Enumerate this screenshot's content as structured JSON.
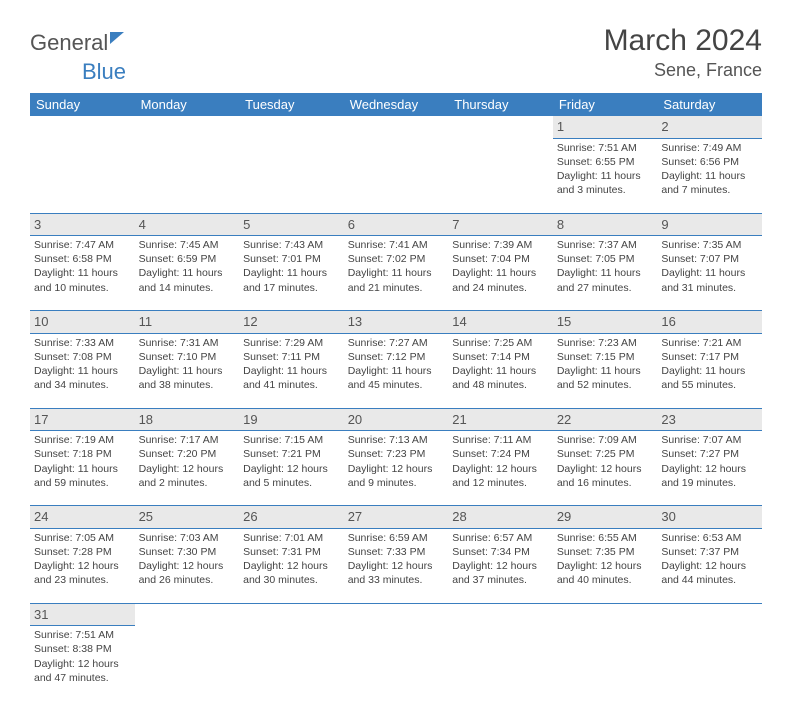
{
  "logo": {
    "part1": "General",
    "part2": "Blue"
  },
  "title": "March 2024",
  "location": "Sene, France",
  "colors": {
    "accent": "#3a7ebf",
    "daynum_bg": "#e9e9e9",
    "text": "#444444"
  },
  "weekdays": [
    "Sunday",
    "Monday",
    "Tuesday",
    "Wednesday",
    "Thursday",
    "Friday",
    "Saturday"
  ],
  "weeks": [
    [
      null,
      null,
      null,
      null,
      null,
      {
        "d": "1",
        "sr": "7:51 AM",
        "ss": "6:55 PM",
        "dl": "11 hours and 3 minutes."
      },
      {
        "d": "2",
        "sr": "7:49 AM",
        "ss": "6:56 PM",
        "dl": "11 hours and 7 minutes."
      }
    ],
    [
      {
        "d": "3",
        "sr": "7:47 AM",
        "ss": "6:58 PM",
        "dl": "11 hours and 10 minutes."
      },
      {
        "d": "4",
        "sr": "7:45 AM",
        "ss": "6:59 PM",
        "dl": "11 hours and 14 minutes."
      },
      {
        "d": "5",
        "sr": "7:43 AM",
        "ss": "7:01 PM",
        "dl": "11 hours and 17 minutes."
      },
      {
        "d": "6",
        "sr": "7:41 AM",
        "ss": "7:02 PM",
        "dl": "11 hours and 21 minutes."
      },
      {
        "d": "7",
        "sr": "7:39 AM",
        "ss": "7:04 PM",
        "dl": "11 hours and 24 minutes."
      },
      {
        "d": "8",
        "sr": "7:37 AM",
        "ss": "7:05 PM",
        "dl": "11 hours and 27 minutes."
      },
      {
        "d": "9",
        "sr": "7:35 AM",
        "ss": "7:07 PM",
        "dl": "11 hours and 31 minutes."
      }
    ],
    [
      {
        "d": "10",
        "sr": "7:33 AM",
        "ss": "7:08 PM",
        "dl": "11 hours and 34 minutes."
      },
      {
        "d": "11",
        "sr": "7:31 AM",
        "ss": "7:10 PM",
        "dl": "11 hours and 38 minutes."
      },
      {
        "d": "12",
        "sr": "7:29 AM",
        "ss": "7:11 PM",
        "dl": "11 hours and 41 minutes."
      },
      {
        "d": "13",
        "sr": "7:27 AM",
        "ss": "7:12 PM",
        "dl": "11 hours and 45 minutes."
      },
      {
        "d": "14",
        "sr": "7:25 AM",
        "ss": "7:14 PM",
        "dl": "11 hours and 48 minutes."
      },
      {
        "d": "15",
        "sr": "7:23 AM",
        "ss": "7:15 PM",
        "dl": "11 hours and 52 minutes."
      },
      {
        "d": "16",
        "sr": "7:21 AM",
        "ss": "7:17 PM",
        "dl": "11 hours and 55 minutes."
      }
    ],
    [
      {
        "d": "17",
        "sr": "7:19 AM",
        "ss": "7:18 PM",
        "dl": "11 hours and 59 minutes."
      },
      {
        "d": "18",
        "sr": "7:17 AM",
        "ss": "7:20 PM",
        "dl": "12 hours and 2 minutes."
      },
      {
        "d": "19",
        "sr": "7:15 AM",
        "ss": "7:21 PM",
        "dl": "12 hours and 5 minutes."
      },
      {
        "d": "20",
        "sr": "7:13 AM",
        "ss": "7:23 PM",
        "dl": "12 hours and 9 minutes."
      },
      {
        "d": "21",
        "sr": "7:11 AM",
        "ss": "7:24 PM",
        "dl": "12 hours and 12 minutes."
      },
      {
        "d": "22",
        "sr": "7:09 AM",
        "ss": "7:25 PM",
        "dl": "12 hours and 16 minutes."
      },
      {
        "d": "23",
        "sr": "7:07 AM",
        "ss": "7:27 PM",
        "dl": "12 hours and 19 minutes."
      }
    ],
    [
      {
        "d": "24",
        "sr": "7:05 AM",
        "ss": "7:28 PM",
        "dl": "12 hours and 23 minutes."
      },
      {
        "d": "25",
        "sr": "7:03 AM",
        "ss": "7:30 PM",
        "dl": "12 hours and 26 minutes."
      },
      {
        "d": "26",
        "sr": "7:01 AM",
        "ss": "7:31 PM",
        "dl": "12 hours and 30 minutes."
      },
      {
        "d": "27",
        "sr": "6:59 AM",
        "ss": "7:33 PM",
        "dl": "12 hours and 33 minutes."
      },
      {
        "d": "28",
        "sr": "6:57 AM",
        "ss": "7:34 PM",
        "dl": "12 hours and 37 minutes."
      },
      {
        "d": "29",
        "sr": "6:55 AM",
        "ss": "7:35 PM",
        "dl": "12 hours and 40 minutes."
      },
      {
        "d": "30",
        "sr": "6:53 AM",
        "ss": "7:37 PM",
        "dl": "12 hours and 44 minutes."
      }
    ],
    [
      {
        "d": "31",
        "sr": "7:51 AM",
        "ss": "8:38 PM",
        "dl": "12 hours and 47 minutes."
      },
      null,
      null,
      null,
      null,
      null,
      null
    ]
  ],
  "labels": {
    "sunrise": "Sunrise: ",
    "sunset": "Sunset: ",
    "daylight": "Daylight: "
  }
}
